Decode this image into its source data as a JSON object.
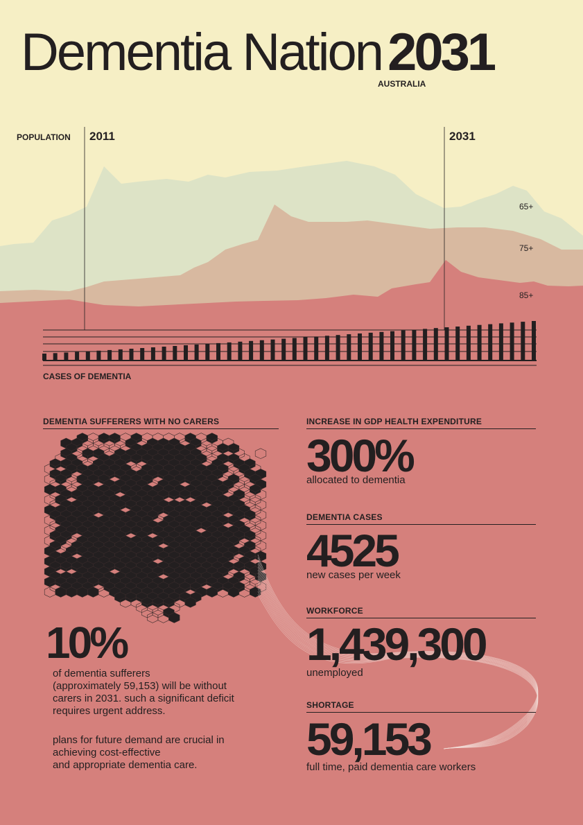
{
  "title": {
    "text": "Dementia Nation",
    "year": "2031",
    "subtitle": "AUSTRALIA"
  },
  "population": {
    "label": "POPULATION",
    "start_year": "2011",
    "end_year": "2031",
    "tiers": [
      "65+",
      "75+",
      "85+"
    ]
  },
  "cases": {
    "label": "CASES OF DEMENTIA"
  },
  "carers": {
    "heading": "DEMENTIA SUFFERERS WITH NO CARERS",
    "big": "10%",
    "paragraph_1": [
      "of dementia sufferers",
      "(approximately 59,153) will be without",
      "carers in 2031. such a significant deficit",
      "requires urgent address."
    ],
    "paragraph_2": [
      "plans for future demand are crucial in",
      "achieving cost-effective",
      "and appropriate dementia care."
    ]
  },
  "stats": [
    {
      "heading": "INCREASE IN GDP HEALTH EXPENDITURE",
      "value": "300%",
      "caption": "allocated to dementia"
    },
    {
      "heading": "DEMENTIA CASES",
      "value": "4525",
      "caption": "new cases per week"
    },
    {
      "heading": "WORKFORCE",
      "value": "1,439,300",
      "caption": "unemployed"
    },
    {
      "heading": "SHORTAGE",
      "value": "59,153",
      "caption": "full time, paid dementia care workers"
    }
  ],
  "colors": {
    "background": "#f6efc5",
    "tier_65": "#dde3c6",
    "tier_75": "#d8b9a0",
    "tier_85": "#d5807c",
    "ink": "#231f20"
  }
}
